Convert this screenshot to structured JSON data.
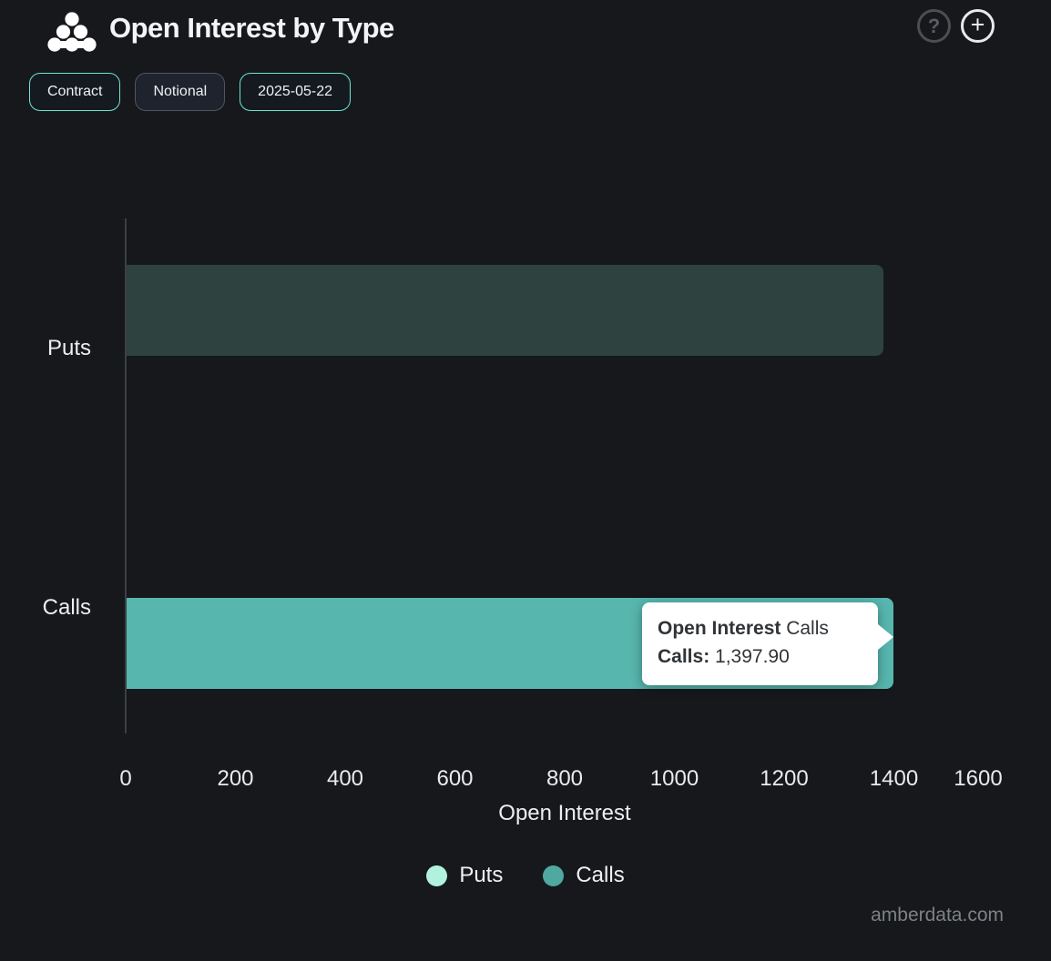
{
  "header": {
    "title": "Open Interest by Type",
    "help_glyph": "?",
    "add_glyph": "+"
  },
  "filters": [
    {
      "label": "Contract",
      "active": true
    },
    {
      "label": "Notional",
      "active": false
    },
    {
      "label": "2025-05-22",
      "active": true
    }
  ],
  "chart_data": {
    "type": "bar",
    "orientation": "horizontal",
    "title": "Open Interest by Type",
    "xlabel": "Open Interest",
    "ylabel": "",
    "xlim": [
      0,
      1600
    ],
    "x_ticks": [
      0,
      200,
      400,
      600,
      800,
      1000,
      1200,
      1400,
      1600
    ],
    "categories": [
      "Puts",
      "Calls"
    ],
    "grid": false,
    "legend_position": "bottom",
    "series": [
      {
        "name": "Puts",
        "value": 1380.0,
        "category": "Puts",
        "legend_color": "#b0f2de",
        "bar_color": "#2e4240",
        "dimmed": true
      },
      {
        "name": "Calls",
        "value": 1397.9,
        "category": "Calls",
        "legend_color": "#4fa9a1",
        "bar_color": "#57b6ae",
        "dimmed": false
      }
    ]
  },
  "tooltip": {
    "title_bold": "Open Interest",
    "title_rest": " Calls",
    "row_label": "Calls:",
    "row_value": " 1,397.90"
  },
  "watermark": "amberdata.com",
  "colors": {
    "background": "#16181b",
    "accent_teal": "#6ce5d2",
    "axis_line": "#3b4045",
    "tooltip_bg": "#ffffff"
  }
}
